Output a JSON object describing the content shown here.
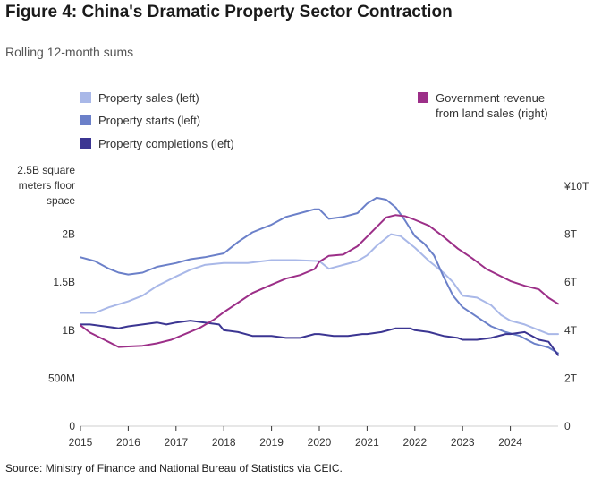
{
  "header": {
    "title": "Figure 4: China's Dramatic Property Sector Contraction",
    "subtitle": "Rolling 12-month sums"
  },
  "footer": {
    "source": "Source: Ministry of Finance and National Bureau of Statistics via CEIC."
  },
  "colors": {
    "sales": "#a9b8e8",
    "starts": "#6b80c9",
    "completions": "#3b3592",
    "revenue": "#9c2f88",
    "axis": "#333333",
    "baseline": "#cfcfcf"
  },
  "chart_data": {
    "type": "line",
    "title": "Figure 4: China's Dramatic Property Sector Contraction",
    "subtitle": "Rolling 12-month sums",
    "legend": {
      "placement": "top"
    },
    "grid": false,
    "x_axis": {
      "range": [
        2015.0,
        2025.0
      ],
      "ticks": [
        2015,
        2016,
        2017,
        2018,
        2019,
        2020,
        2021,
        2022,
        2023,
        2024
      ],
      "tick_labels": [
        "2015",
        "2016",
        "2017",
        "2018",
        "2019",
        "2020",
        "2021",
        "2022",
        "2023",
        "2024"
      ]
    },
    "y_axis_left": {
      "range": [
        0,
        2.5
      ],
      "ticks": [
        0,
        0.5,
        1.0,
        1.5,
        2.0,
        2.5
      ],
      "tick_labels": [
        "0",
        "500M",
        "1B",
        "1.5B",
        "2B",
        "2.5B square\nmeters floor\nspace"
      ]
    },
    "y_axis_right": {
      "range": [
        0,
        10
      ],
      "ticks": [
        0,
        2,
        4,
        6,
        8,
        10
      ],
      "tick_labels": [
        "0",
        "2T",
        "4T",
        "6T",
        "8T",
        "¥10T"
      ]
    },
    "series": [
      {
        "name": "Property sales (left)",
        "axis": "left",
        "color": "#a9b8e8",
        "x": [
          2015.0,
          2015.3,
          2015.6,
          2016.0,
          2016.3,
          2016.6,
          2017.0,
          2017.3,
          2017.6,
          2018.0,
          2018.5,
          2019.0,
          2019.5,
          2020.0,
          2020.2,
          2020.5,
          2020.8,
          2021.0,
          2021.2,
          2021.4,
          2021.5,
          2021.7,
          2022.0,
          2022.3,
          2022.6,
          2022.8,
          2023.0,
          2023.3,
          2023.6,
          2023.8,
          2024.0,
          2024.3,
          2024.6,
          2024.8,
          2025.0
        ],
        "y": [
          1.18,
          1.18,
          1.24,
          1.3,
          1.36,
          1.46,
          1.56,
          1.63,
          1.68,
          1.7,
          1.7,
          1.73,
          1.73,
          1.72,
          1.64,
          1.68,
          1.72,
          1.78,
          1.88,
          1.96,
          2.0,
          1.98,
          1.86,
          1.72,
          1.6,
          1.5,
          1.36,
          1.34,
          1.26,
          1.16,
          1.1,
          1.06,
          1.0,
          0.96,
          0.96
        ]
      },
      {
        "name": "Property starts (left)",
        "axis": "left",
        "color": "#6b80c9",
        "x": [
          2015.0,
          2015.3,
          2015.6,
          2015.8,
          2016.0,
          2016.3,
          2016.6,
          2017.0,
          2017.3,
          2017.6,
          2018.0,
          2018.3,
          2018.6,
          2019.0,
          2019.3,
          2019.6,
          2019.9,
          2020.0,
          2020.2,
          2020.5,
          2020.8,
          2021.0,
          2021.2,
          2021.4,
          2021.6,
          2021.8,
          2022.0,
          2022.2,
          2022.4,
          2022.6,
          2022.8,
          2023.0,
          2023.3,
          2023.6,
          2023.9,
          2024.2,
          2024.5,
          2024.8,
          2025.0
        ],
        "y": [
          1.76,
          1.72,
          1.64,
          1.6,
          1.58,
          1.6,
          1.66,
          1.7,
          1.74,
          1.76,
          1.8,
          1.92,
          2.02,
          2.1,
          2.18,
          2.22,
          2.26,
          2.26,
          2.16,
          2.18,
          2.22,
          2.32,
          2.38,
          2.36,
          2.28,
          2.14,
          1.98,
          1.9,
          1.78,
          1.56,
          1.36,
          1.24,
          1.14,
          1.04,
          0.98,
          0.94,
          0.86,
          0.82,
          0.76
        ]
      },
      {
        "name": "Property completions (left)",
        "axis": "left",
        "color": "#3b3592",
        "x": [
          2015.0,
          2015.2,
          2015.5,
          2015.8,
          2016.0,
          2016.3,
          2016.6,
          2016.8,
          2017.0,
          2017.3,
          2017.6,
          2017.9,
          2018.0,
          2018.3,
          2018.6,
          2019.0,
          2019.3,
          2019.6,
          2019.9,
          2020.0,
          2020.3,
          2020.6,
          2020.9,
          2021.0,
          2021.3,
          2021.6,
          2021.9,
          2022.0,
          2022.3,
          2022.6,
          2022.9,
          2023.0,
          2023.3,
          2023.6,
          2023.9,
          2024.0,
          2024.3,
          2024.6,
          2024.8,
          2025.0
        ],
        "y": [
          1.06,
          1.06,
          1.04,
          1.02,
          1.04,
          1.06,
          1.08,
          1.06,
          1.08,
          1.1,
          1.08,
          1.06,
          1.0,
          0.98,
          0.94,
          0.94,
          0.92,
          0.92,
          0.96,
          0.96,
          0.94,
          0.94,
          0.96,
          0.96,
          0.98,
          1.02,
          1.02,
          1.0,
          0.98,
          0.94,
          0.92,
          0.9,
          0.9,
          0.92,
          0.96,
          0.96,
          0.98,
          0.9,
          0.88,
          0.74
        ]
      },
      {
        "name": "Government revenue\nfrom land sales (right)",
        "axis": "right",
        "color": "#9c2f88",
        "x": [
          2015.0,
          2015.2,
          2015.5,
          2015.8,
          2016.0,
          2016.3,
          2016.6,
          2016.9,
          2017.2,
          2017.5,
          2017.8,
          2018.0,
          2018.3,
          2018.6,
          2019.0,
          2019.3,
          2019.6,
          2019.9,
          2020.0,
          2020.2,
          2020.5,
          2020.8,
          2021.0,
          2021.2,
          2021.4,
          2021.6,
          2021.8,
          2022.0,
          2022.3,
          2022.6,
          2022.9,
          2023.2,
          2023.5,
          2023.8,
          2024.0,
          2024.3,
          2024.6,
          2024.8,
          2025.0
        ],
        "y": [
          4.2,
          3.9,
          3.6,
          3.3,
          3.32,
          3.35,
          3.45,
          3.6,
          3.85,
          4.1,
          4.45,
          4.75,
          5.15,
          5.55,
          5.9,
          6.15,
          6.3,
          6.55,
          6.85,
          7.1,
          7.15,
          7.5,
          7.9,
          8.3,
          8.7,
          8.8,
          8.75,
          8.6,
          8.35,
          7.9,
          7.4,
          7.0,
          6.55,
          6.25,
          6.05,
          5.85,
          5.7,
          5.35,
          5.1
        ]
      }
    ]
  }
}
